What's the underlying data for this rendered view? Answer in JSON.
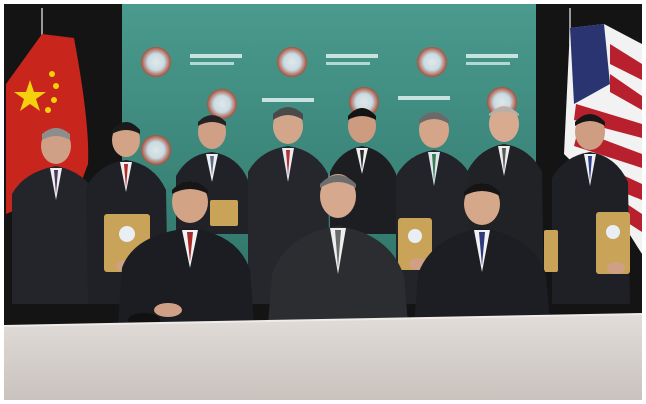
{
  "photo": {
    "subject": "group-photo",
    "backdrop_color": "#3f8f84",
    "table_color": "#d9d3cf",
    "suit_color": "#1d1f24",
    "skin_color": "#cf9f86",
    "plaque_color": "#c9a458"
  }
}
